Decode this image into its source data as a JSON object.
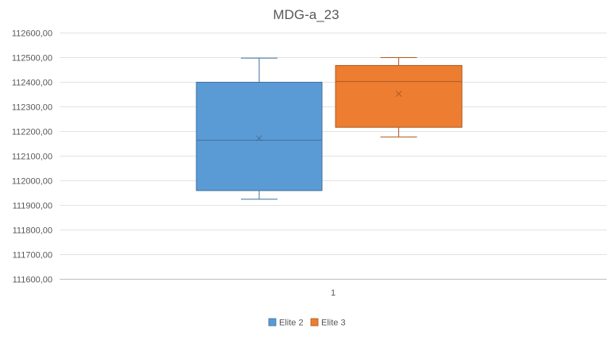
{
  "chart_data": {
    "type": "box",
    "title": "MDG-a_23",
    "categories": [
      "1"
    ],
    "y_tick_labels": [
      "112600,00",
      "112500,00",
      "112400,00",
      "112300,00",
      "112200,00",
      "112100,00",
      "112000,00",
      "111900,00",
      "111800,00",
      "111700,00",
      "111600,00"
    ],
    "ylim": [
      111600,
      112600
    ],
    "y_step": 100,
    "grid": true,
    "legend_position": "bottom",
    "series": [
      {
        "name": "Elite 2",
        "color": "#5B9BD5",
        "stroke": "#41719C",
        "min": 111925,
        "q1": 111960,
        "median": 112165,
        "mean": 112172,
        "q3": 112400,
        "max": 112498
      },
      {
        "name": "Elite 3",
        "color": "#ED7D31",
        "stroke": "#AE5A21",
        "min": 112178,
        "q1": 112217,
        "median": 112403,
        "mean": 112353,
        "q3": 112468,
        "max": 112500
      }
    ]
  }
}
